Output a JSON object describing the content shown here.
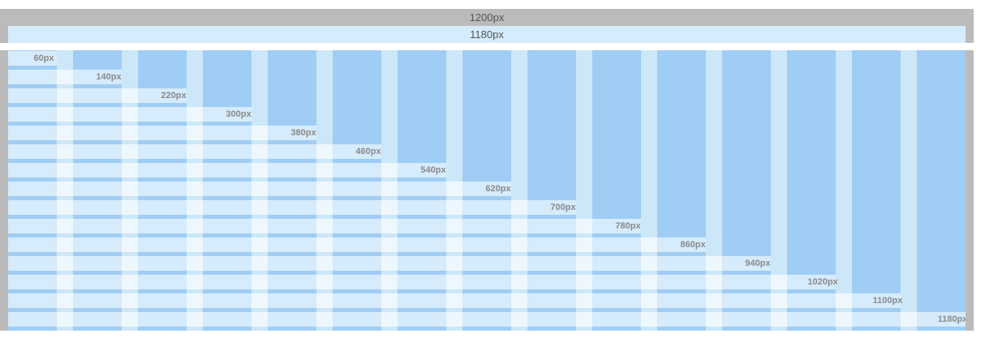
{
  "bands": {
    "outer_label": "1200px",
    "inner_label": "1180px"
  },
  "grid": {
    "column_count": 15,
    "rows": [
      {
        "label": "60px",
        "span": 1
      },
      {
        "label": "140px",
        "span": 2
      },
      {
        "label": "220px",
        "span": 3
      },
      {
        "label": "300px",
        "span": 4
      },
      {
        "label": "380px",
        "span": 5
      },
      {
        "label": "460px",
        "span": 6
      },
      {
        "label": "540px",
        "span": 7
      },
      {
        "label": "620px",
        "span": 8
      },
      {
        "label": "700px",
        "span": 9
      },
      {
        "label": "780px",
        "span": 10
      },
      {
        "label": "860px",
        "span": 11
      },
      {
        "label": "940px",
        "span": 12
      },
      {
        "label": "1020px",
        "span": 13
      },
      {
        "label": "1100px",
        "span": 14
      },
      {
        "label": "1180px",
        "span": 15
      }
    ]
  },
  "colors": {
    "frame": "#bbbbbb",
    "band_inner": "#d4ecfb",
    "column": "#a0cdf4",
    "gutter": "#cce8f8",
    "row_fill": "#d6ebfb",
    "row_gutter": "#eef7fd",
    "label": "#8a8a8a"
  }
}
